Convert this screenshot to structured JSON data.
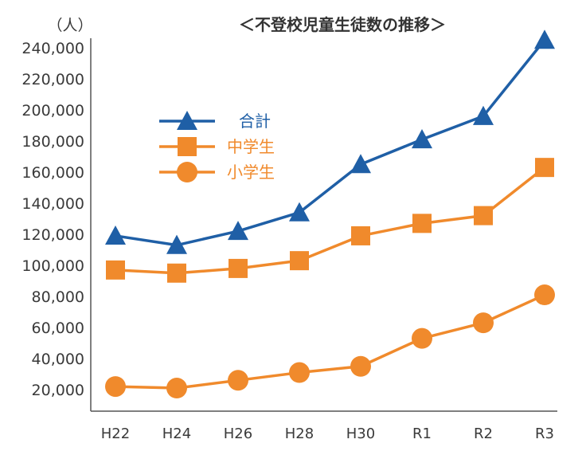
{
  "chart_data": {
    "type": "line",
    "title": "＜不登校児童生徒数の推移＞",
    "ylabel": "（人）",
    "xlabel": "",
    "categories": [
      "H22",
      "H24",
      "H26",
      "H28",
      "H30",
      "R1",
      "R2",
      "R3"
    ],
    "ylim": [
      0,
      240000
    ],
    "yticks": [
      "20,000",
      "40,000",
      "60,000",
      "80,000",
      "100,000",
      "120,000",
      "140,000",
      "160,000",
      "180,000",
      "200,000",
      "220,000",
      "240,000"
    ],
    "ytick_values": [
      20000,
      40000,
      60000,
      80000,
      100000,
      120000,
      140000,
      160000,
      180000,
      200000,
      220000,
      240000
    ],
    "grid": false,
    "legend_position": "upper-left",
    "series": [
      {
        "name": "合計",
        "color": "#1f5fa6",
        "marker": "triangle",
        "values": [
          119000,
          113000,
          122000,
          134000,
          165000,
          181000,
          196000,
          245000
        ]
      },
      {
        "name": "中学生",
        "color": "#f08a2c",
        "marker": "square",
        "values": [
          97000,
          95000,
          98000,
          103000,
          119000,
          127000,
          132000,
          163000
        ]
      },
      {
        "name": "小学生",
        "color": "#f08a2c",
        "marker": "circle",
        "values": [
          22000,
          21000,
          26000,
          31000,
          35000,
          53000,
          63000,
          81000
        ]
      }
    ]
  }
}
